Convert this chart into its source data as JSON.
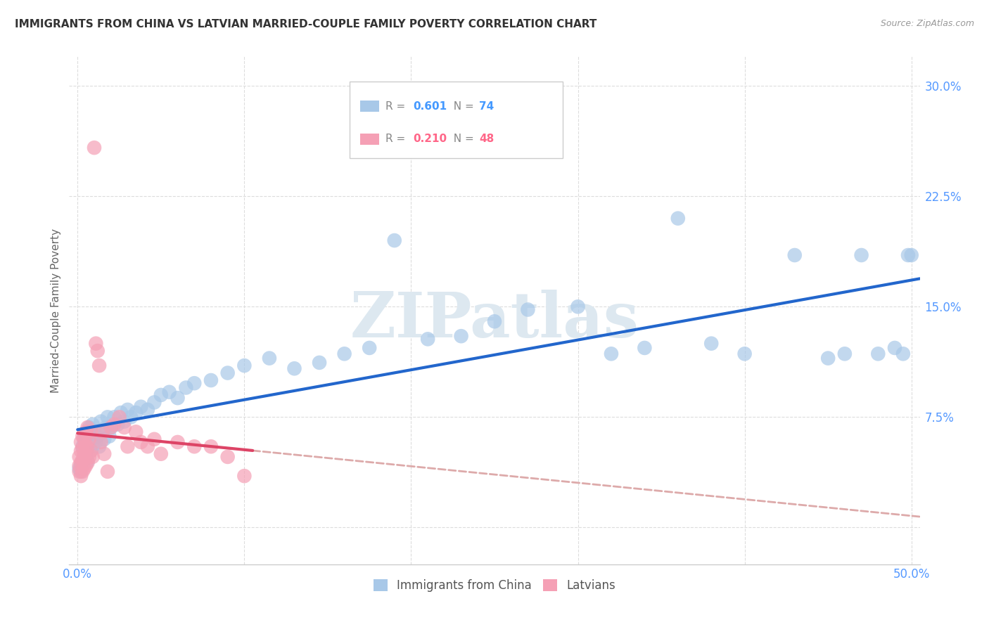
{
  "title": "IMMIGRANTS FROM CHINA VS LATVIAN MARRIED-COUPLE FAMILY POVERTY CORRELATION CHART",
  "source": "Source: ZipAtlas.com",
  "ylabel": "Married-Couple Family Poverty",
  "xlim": [
    -0.005,
    0.505
  ],
  "ylim": [
    -0.025,
    0.32
  ],
  "xticks": [
    0.0,
    0.1,
    0.2,
    0.3,
    0.4,
    0.5
  ],
  "xticklabels": [
    "0.0%",
    "",
    "",
    "",
    "",
    "50.0%"
  ],
  "yticks": [
    0.0,
    0.075,
    0.15,
    0.225,
    0.3
  ],
  "yticklabels": [
    "",
    "7.5%",
    "15.0%",
    "22.5%",
    "30.0%"
  ],
  "blue_color": "#a8c8e8",
  "pink_color": "#f5a0b5",
  "trend_blue_color": "#2266cc",
  "trend_pink_color": "#dd4466",
  "trend_pink_dash_color": "#ddaaaa",
  "R_blue": 0.601,
  "N_blue": 74,
  "R_pink": 0.21,
  "N_pink": 48,
  "blue_x": [
    0.001,
    0.002,
    0.002,
    0.003,
    0.003,
    0.004,
    0.004,
    0.004,
    0.005,
    0.005,
    0.005,
    0.006,
    0.006,
    0.006,
    0.007,
    0.007,
    0.008,
    0.008,
    0.009,
    0.009,
    0.01,
    0.011,
    0.012,
    0.013,
    0.014,
    0.015,
    0.016,
    0.017,
    0.018,
    0.019,
    0.02,
    0.022,
    0.024,
    0.026,
    0.028,
    0.03,
    0.032,
    0.035,
    0.038,
    0.042,
    0.046,
    0.05,
    0.055,
    0.06,
    0.065,
    0.07,
    0.08,
    0.09,
    0.1,
    0.115,
    0.13,
    0.145,
    0.16,
    0.175,
    0.19,
    0.21,
    0.23,
    0.25,
    0.27,
    0.3,
    0.32,
    0.34,
    0.36,
    0.38,
    0.4,
    0.43,
    0.45,
    0.46,
    0.47,
    0.48,
    0.49,
    0.495,
    0.498,
    0.5
  ],
  "blue_y": [
    0.04,
    0.042,
    0.038,
    0.045,
    0.055,
    0.05,
    0.058,
    0.062,
    0.048,
    0.052,
    0.06,
    0.055,
    0.045,
    0.065,
    0.058,
    0.068,
    0.052,
    0.06,
    0.055,
    0.07,
    0.065,
    0.058,
    0.062,
    0.055,
    0.072,
    0.065,
    0.06,
    0.068,
    0.075,
    0.062,
    0.068,
    0.075,
    0.07,
    0.078,
    0.072,
    0.08,
    0.075,
    0.078,
    0.082,
    0.08,
    0.085,
    0.09,
    0.092,
    0.088,
    0.095,
    0.098,
    0.1,
    0.105,
    0.11,
    0.115,
    0.108,
    0.112,
    0.118,
    0.122,
    0.195,
    0.128,
    0.13,
    0.14,
    0.148,
    0.15,
    0.118,
    0.122,
    0.21,
    0.125,
    0.118,
    0.185,
    0.115,
    0.118,
    0.185,
    0.118,
    0.122,
    0.118,
    0.185,
    0.185
  ],
  "pink_x": [
    0.001,
    0.001,
    0.001,
    0.002,
    0.002,
    0.002,
    0.002,
    0.003,
    0.003,
    0.003,
    0.003,
    0.004,
    0.004,
    0.004,
    0.005,
    0.005,
    0.005,
    0.006,
    0.006,
    0.006,
    0.007,
    0.007,
    0.008,
    0.008,
    0.009,
    0.01,
    0.011,
    0.012,
    0.013,
    0.014,
    0.015,
    0.016,
    0.018,
    0.02,
    0.022,
    0.025,
    0.028,
    0.03,
    0.035,
    0.038,
    0.042,
    0.046,
    0.05,
    0.06,
    0.07,
    0.08,
    0.09,
    0.1
  ],
  "pink_y": [
    0.038,
    0.042,
    0.048,
    0.035,
    0.044,
    0.052,
    0.058,
    0.038,
    0.046,
    0.054,
    0.062,
    0.04,
    0.05,
    0.06,
    0.042,
    0.055,
    0.065,
    0.044,
    0.055,
    0.068,
    0.048,
    0.06,
    0.052,
    0.065,
    0.048,
    0.258,
    0.125,
    0.12,
    0.11,
    0.058,
    0.065,
    0.05,
    0.038,
    0.068,
    0.07,
    0.075,
    0.068,
    0.055,
    0.065,
    0.058,
    0.055,
    0.06,
    0.05,
    0.058,
    0.055,
    0.055,
    0.048,
    0.035
  ],
  "watermark_text": "ZIPatlas",
  "watermark_color": "#dde8f0",
  "background_color": "#ffffff",
  "grid_color": "#dddddd",
  "spine_color": "#cccccc",
  "tick_color": "#5599ff",
  "ylabel_color": "#666666",
  "title_color": "#333333",
  "source_color": "#999999",
  "legend_border_color": "#cccccc",
  "legend_text_color": "#888888",
  "legend_blue_val_color": "#4499ff",
  "legend_pink_val_color": "#ff6688"
}
